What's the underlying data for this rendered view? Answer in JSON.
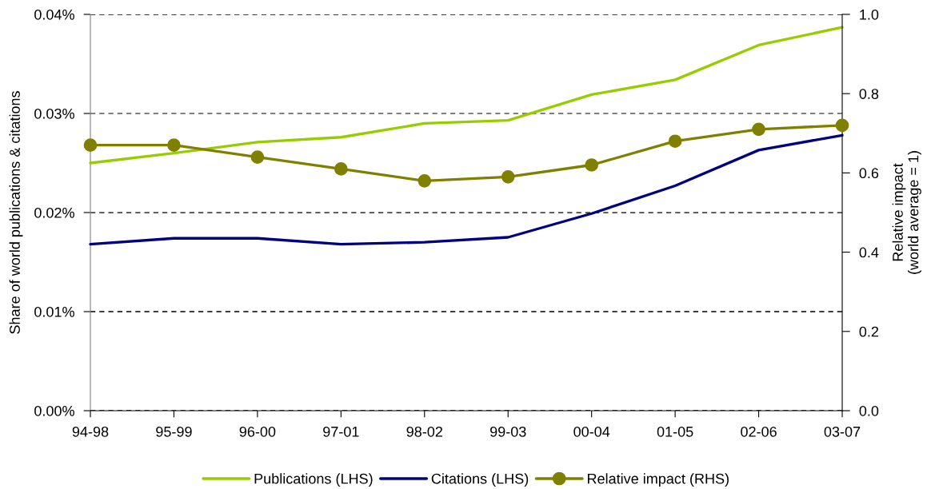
{
  "chart_data": {
    "type": "line",
    "ylabel": "Share of world publications & citations",
    "y2label": "Relative impact\n(world average = 1)",
    "categories": [
      "94-98",
      "95-99",
      "96-00",
      "97-01",
      "98-02",
      "99-03",
      "00-04",
      "01-05",
      "02-06",
      "03-07"
    ],
    "series": [
      {
        "name": "Publications (LHS)",
        "color": "#99cc00",
        "marker": "none",
        "values": [
          0.025,
          0.026,
          0.0271,
          0.0276,
          0.029,
          0.0293,
          0.0319,
          0.0334,
          0.0369,
          0.0387
        ]
      },
      {
        "name": "Citations (LHS)",
        "color": "#000080",
        "marker": "none",
        "values": [
          0.0168,
          0.0174,
          0.0174,
          0.0168,
          0.017,
          0.0175,
          0.0199,
          0.0227,
          0.0263,
          0.0278
        ]
      },
      {
        "name": "Relative impact (RHS)",
        "color": "#808000",
        "marker": "circle",
        "axis": "y2",
        "values": [
          0.67,
          0.67,
          0.64,
          0.61,
          0.58,
          0.59,
          0.62,
          0.68,
          0.71,
          0.72
        ]
      }
    ],
    "ylim": [
      0,
      0.04
    ],
    "yticks": [
      {
        "value": 0,
        "label": "0.00%"
      },
      {
        "value": 0.01,
        "label": "0.01%"
      },
      {
        "value": 0.02,
        "label": "0.02%"
      },
      {
        "value": 0.03,
        "label": "0.03%"
      },
      {
        "value": 0.04,
        "label": "0.04%"
      }
    ],
    "y2lim": [
      0,
      1
    ],
    "y2ticks": [
      {
        "value": 0,
        "label": "0.0"
      },
      {
        "value": 0.2,
        "label": "0.2"
      },
      {
        "value": 0.4,
        "label": "0.4"
      },
      {
        "value": 0.6,
        "label": "0.6"
      },
      {
        "value": 0.8,
        "label": "0.8"
      },
      {
        "value": 1,
        "label": "1.0"
      }
    ],
    "grid": "y",
    "legend": "bottom",
    "line_style": "solid"
  }
}
